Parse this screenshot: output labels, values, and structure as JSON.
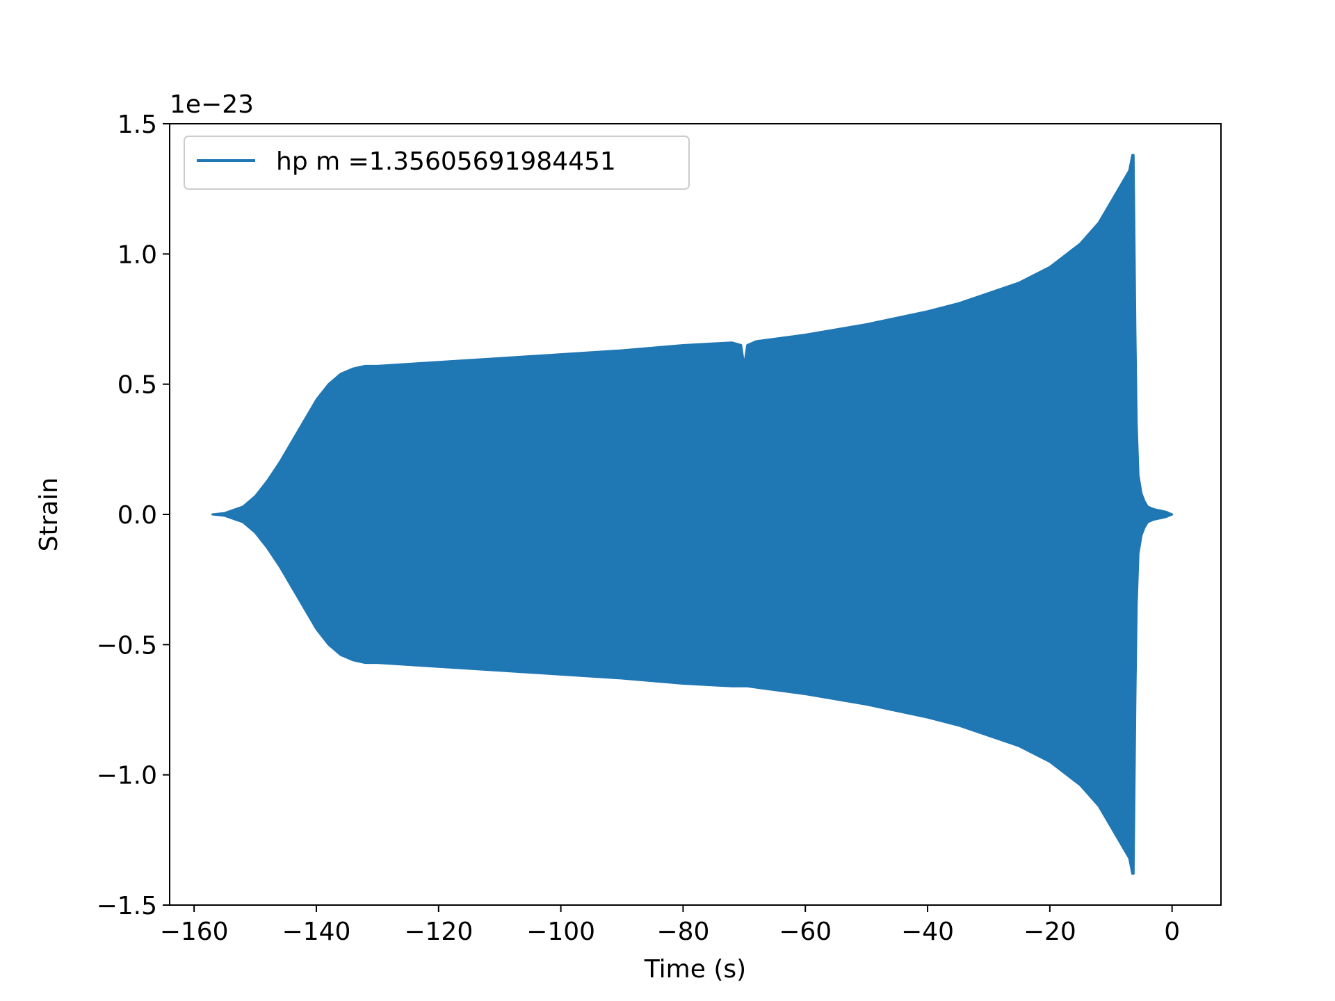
{
  "chart_data": {
    "type": "line",
    "title": "",
    "xlabel": "Time (s)",
    "ylabel": "Strain",
    "y_offset_label": "1e−23",
    "xlim": [
      -164,
      8
    ],
    "ylim": [
      -1.5,
      1.5
    ],
    "xticks": [
      -160,
      -140,
      -120,
      -100,
      -80,
      -60,
      -40,
      -20,
      0
    ],
    "xtick_labels": [
      "−160",
      "−140",
      "−120",
      "−100",
      "−80",
      "−60",
      "−40",
      "−20",
      "0"
    ],
    "yticks": [
      -1.5,
      -1.0,
      -0.5,
      0.0,
      0.5,
      1.0,
      1.5
    ],
    "ytick_labels": [
      "−1.5",
      "−1.0",
      "−0.5",
      "0.0",
      "0.5",
      "1.0",
      "1.5"
    ],
    "grid": false,
    "legend_position": "top-left",
    "series": [
      {
        "name": "hp m =1.35605691984451",
        "color": "#1f77b4",
        "style": "oscillating waveform envelope",
        "envelope_x": [
          -157,
          -155,
          -152,
          -150,
          -148,
          -146,
          -144,
          -142,
          -140,
          -138,
          -136,
          -134,
          -132,
          -130,
          -120,
          -110,
          -100,
          -90,
          -80,
          -72,
          -70.5,
          -70,
          -69.5,
          -68,
          -60,
          -50,
          -40,
          -35,
          -30,
          -25,
          -20,
          -15,
          -12,
          -10,
          -8,
          -7,
          -6.5,
          -6.3,
          -6.0,
          -5.8,
          -5.5,
          -5,
          -4.5,
          -4,
          -3,
          -2,
          -1,
          0
        ],
        "envelope_upper": [
          0.0,
          0.005,
          0.03,
          0.07,
          0.13,
          0.2,
          0.28,
          0.36,
          0.44,
          0.5,
          0.54,
          0.56,
          0.57,
          0.57,
          0.585,
          0.6,
          0.615,
          0.63,
          0.65,
          0.66,
          0.65,
          0.57,
          0.65,
          0.665,
          0.69,
          0.73,
          0.78,
          0.81,
          0.85,
          0.89,
          0.95,
          1.04,
          1.12,
          1.2,
          1.28,
          1.32,
          1.38,
          1.38,
          0.7,
          0.35,
          0.15,
          0.08,
          0.05,
          0.03,
          0.02,
          0.015,
          0.01,
          0.0
        ],
        "envelope_lower": [
          0.0,
          -0.005,
          -0.03,
          -0.07,
          -0.13,
          -0.2,
          -0.28,
          -0.36,
          -0.44,
          -0.5,
          -0.54,
          -0.56,
          -0.57,
          -0.57,
          -0.585,
          -0.6,
          -0.615,
          -0.63,
          -0.65,
          -0.66,
          -0.66,
          -0.66,
          -0.66,
          -0.665,
          -0.69,
          -0.73,
          -0.78,
          -0.81,
          -0.85,
          -0.89,
          -0.95,
          -1.04,
          -1.12,
          -1.2,
          -1.28,
          -1.32,
          -1.38,
          -1.38,
          -0.7,
          -0.35,
          -0.15,
          -0.08,
          -0.05,
          -0.03,
          -0.02,
          -0.015,
          -0.01,
          0.0
        ]
      }
    ]
  }
}
